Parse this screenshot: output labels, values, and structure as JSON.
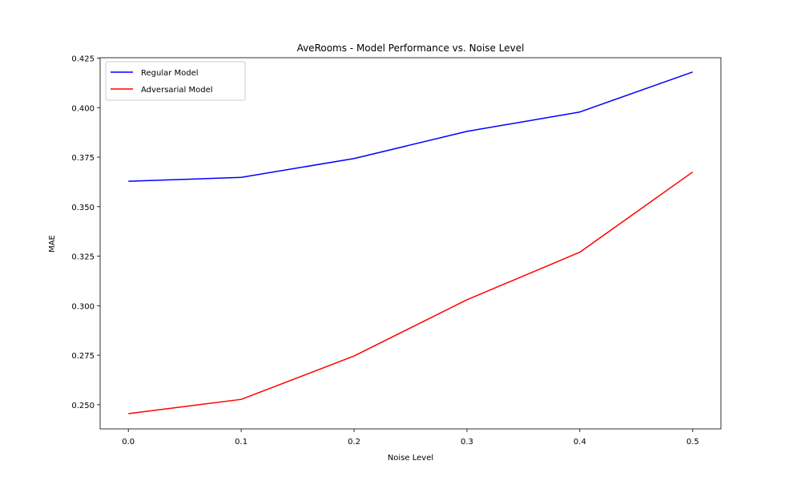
{
  "chart_data": {
    "type": "line",
    "title": "AveRooms - Model Performance vs. Noise Level",
    "xlabel": "Noise Level",
    "ylabel": "MAE",
    "x": [
      0.0,
      0.1,
      0.2,
      0.3,
      0.4,
      0.5
    ],
    "x_ticks": [
      "0.0",
      "0.1",
      "0.2",
      "0.3",
      "0.4",
      "0.5"
    ],
    "xlim": [
      -0.025,
      0.525
    ],
    "ylim": [
      0.2378,
      0.4252
    ],
    "y_ticks": [
      0.25,
      0.275,
      0.3,
      0.325,
      0.35,
      0.375,
      0.4,
      0.425
    ],
    "y_tick_labels": [
      "0.250",
      "0.275",
      "0.300",
      "0.325",
      "0.350",
      "0.375",
      "0.400",
      "0.425"
    ],
    "grid": false,
    "legend_position": "top-left",
    "series": [
      {
        "name": "Regular Model",
        "color": "#0000ff",
        "values": [
          0.3628,
          0.3648,
          0.3743,
          0.388,
          0.3978,
          0.418
        ]
      },
      {
        "name": "Adversarial Model",
        "color": "#ff0000",
        "values": [
          0.2455,
          0.2527,
          0.2746,
          0.303,
          0.327,
          0.3675
        ]
      }
    ]
  }
}
